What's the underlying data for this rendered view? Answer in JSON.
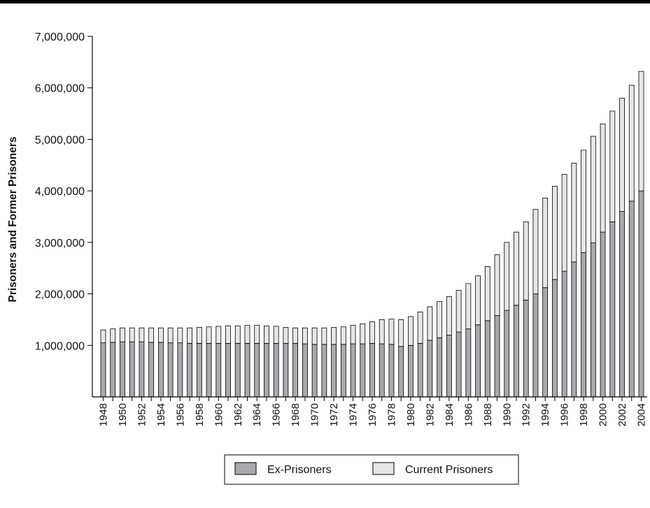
{
  "chart_data": {
    "type": "bar",
    "stacked": true,
    "ylabel": "Prisoners and Former Prisoners",
    "xlabel": "",
    "ylim": [
      0,
      7000000
    ],
    "yticks": [
      1000000,
      2000000,
      3000000,
      4000000,
      5000000,
      6000000,
      7000000
    ],
    "ytick_labels": [
      "1,000,000",
      "2,000,000",
      "3,000,000",
      "4,000,000",
      "5,000,000",
      "6,000,000",
      "7,000,000"
    ],
    "grid": false,
    "legend_position": "bottom-center",
    "categories": [
      "1948",
      "1949",
      "1950",
      "1951",
      "1952",
      "1953",
      "1954",
      "1955",
      "1956",
      "1957",
      "1958",
      "1959",
      "1960",
      "1961",
      "1962",
      "1963",
      "1964",
      "1965",
      "1966",
      "1967",
      "1968",
      "1969",
      "1970",
      "1971",
      "1972",
      "1973",
      "1974",
      "1975",
      "1976",
      "1977",
      "1978",
      "1979",
      "1980",
      "1981",
      "1982",
      "1983",
      "1984",
      "1985",
      "1986",
      "1987",
      "1988",
      "1989",
      "1990",
      "1991",
      "1992",
      "1993",
      "1994",
      "1995",
      "1996",
      "1997",
      "1998",
      "1999",
      "2000",
      "2001",
      "2002",
      "2003",
      "2004"
    ],
    "xtick_labels": [
      "1948",
      "",
      "1950",
      "",
      "1952",
      "",
      "1954",
      "",
      "1956",
      "",
      "1958",
      "",
      "1960",
      "",
      "1962",
      "",
      "1964",
      "",
      "1966",
      "",
      "1968",
      "",
      "1970",
      "",
      "1972",
      "",
      "1974",
      "",
      "1976",
      "",
      "1978",
      "",
      "1980",
      "",
      "1982",
      "",
      "1984",
      "",
      "1986",
      "",
      "1988",
      "",
      "1990",
      "",
      "1992",
      "",
      "1994",
      "",
      "1996",
      "",
      "1998",
      "",
      "2000",
      "",
      "2002",
      "",
      "2004"
    ],
    "series": [
      {
        "name": "Ex-Prisoners",
        "color": "#a9a9ad",
        "values": [
          1050000,
          1060000,
          1070000,
          1070000,
          1070000,
          1060000,
          1060000,
          1050000,
          1050000,
          1040000,
          1040000,
          1040000,
          1040000,
          1040000,
          1040000,
          1040000,
          1040000,
          1040000,
          1040000,
          1040000,
          1040000,
          1030000,
          1020000,
          1020000,
          1020000,
          1020000,
          1030000,
          1030000,
          1040000,
          1030000,
          1020000,
          980000,
          1000000,
          1040000,
          1100000,
          1150000,
          1200000,
          1260000,
          1320000,
          1400000,
          1480000,
          1580000,
          1680000,
          1780000,
          1880000,
          2000000,
          2120000,
          2280000,
          2440000,
          2620000,
          2800000,
          2990000,
          3200000,
          3400000,
          3600000,
          3800000,
          4000000
        ]
      },
      {
        "name": "Current Prisoners",
        "color": "#e6e6e6",
        "values": [
          250000,
          260000,
          270000,
          270000,
          270000,
          280000,
          280000,
          290000,
          290000,
          300000,
          310000,
          320000,
          330000,
          340000,
          340000,
          350000,
          350000,
          340000,
          330000,
          310000,
          300000,
          310000,
          320000,
          320000,
          330000,
          340000,
          360000,
          390000,
          420000,
          470000,
          490000,
          520000,
          560000,
          610000,
          650000,
          700000,
          750000,
          810000,
          880000,
          950000,
          1050000,
          1180000,
          1320000,
          1420000,
          1520000,
          1640000,
          1740000,
          1810000,
          1880000,
          1920000,
          1990000,
          2070000,
          2100000,
          2150000,
          2200000,
          2250000,
          2320000
        ]
      }
    ]
  }
}
